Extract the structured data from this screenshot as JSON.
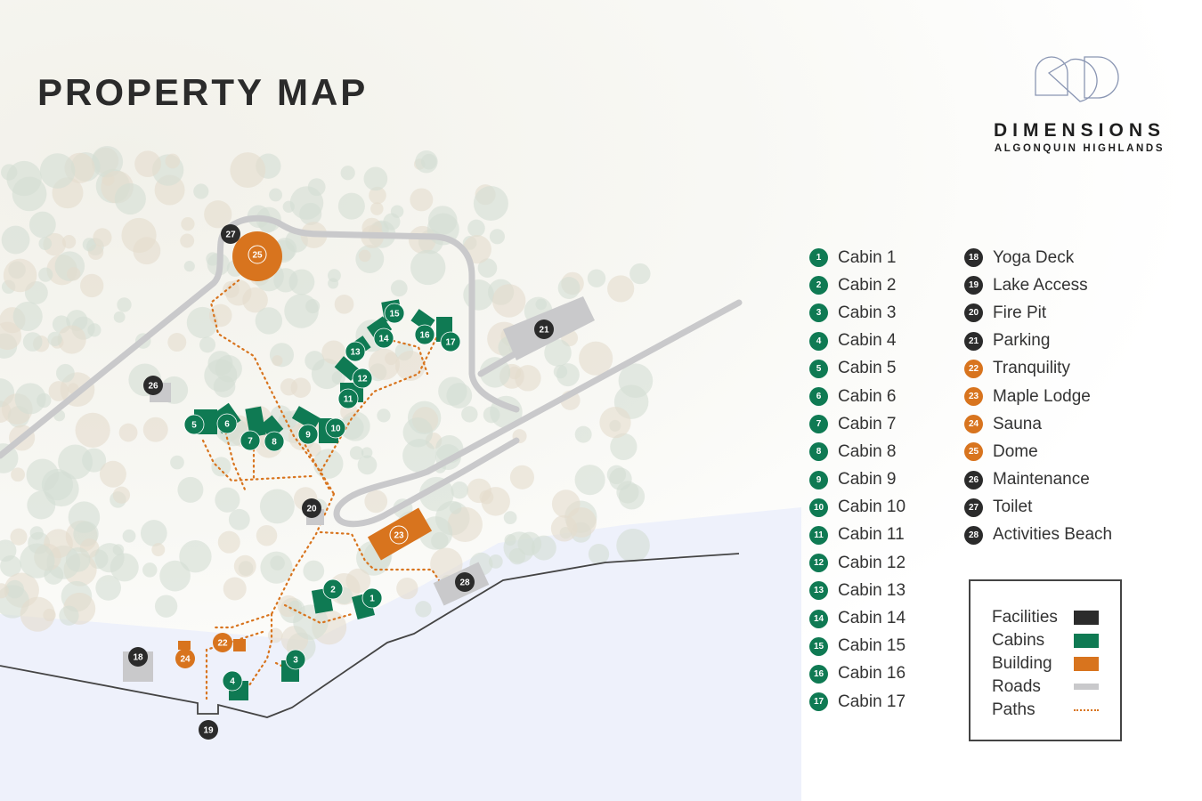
{
  "title": "PROPERTY MAP",
  "brand": {
    "name": "DIMENSIONS",
    "subtitle": "ALGONQUIN HIGHLANDS"
  },
  "colors": {
    "facility": "#2b2b2b",
    "cabin": "#0f7a53",
    "building": "#d8741e",
    "road": "#c9c9cb",
    "path": "#d8741e",
    "water": "#eef1fb"
  },
  "legend_items": [
    {
      "num": "1",
      "label": "Cabin 1",
      "type": "cabin"
    },
    {
      "num": "2",
      "label": "Cabin 2",
      "type": "cabin"
    },
    {
      "num": "3",
      "label": "Cabin 3",
      "type": "cabin"
    },
    {
      "num": "4",
      "label": "Cabin 4",
      "type": "cabin"
    },
    {
      "num": "5",
      "label": "Cabin 5",
      "type": "cabin"
    },
    {
      "num": "6",
      "label": "Cabin 6",
      "type": "cabin"
    },
    {
      "num": "7",
      "label": "Cabin 7",
      "type": "cabin"
    },
    {
      "num": "8",
      "label": "Cabin 8",
      "type": "cabin"
    },
    {
      "num": "9",
      "label": "Cabin 9",
      "type": "cabin"
    },
    {
      "num": "10",
      "label": "Cabin 10",
      "type": "cabin"
    },
    {
      "num": "11",
      "label": "Cabin 11",
      "type": "cabin"
    },
    {
      "num": "12",
      "label": "Cabin 12",
      "type": "cabin"
    },
    {
      "num": "13",
      "label": "Cabin 13",
      "type": "cabin"
    },
    {
      "num": "14",
      "label": "Cabin 14",
      "type": "cabin"
    },
    {
      "num": "15",
      "label": "Cabin 15",
      "type": "cabin"
    },
    {
      "num": "16",
      "label": "Cabin 16",
      "type": "cabin"
    },
    {
      "num": "17",
      "label": "Cabin 17",
      "type": "cabin"
    },
    {
      "num": "18",
      "label": "Yoga Deck",
      "type": "facility"
    },
    {
      "num": "19",
      "label": "Lake Access",
      "type": "facility"
    },
    {
      "num": "20",
      "label": "Fire Pit",
      "type": "facility"
    },
    {
      "num": "21",
      "label": "Parking",
      "type": "facility"
    },
    {
      "num": "22",
      "label": "Tranquility",
      "type": "building"
    },
    {
      "num": "23",
      "label": "Maple Lodge",
      "type": "building"
    },
    {
      "num": "24",
      "label": "Sauna",
      "type": "building"
    },
    {
      "num": "25",
      "label": "Dome",
      "type": "building"
    },
    {
      "num": "26",
      "label": "Maintenance",
      "type": "facility"
    },
    {
      "num": "27",
      "label": "Toilet",
      "type": "facility"
    },
    {
      "num": "28",
      "label": "Activities Beach",
      "type": "facility"
    }
  ],
  "key": [
    {
      "label": "Facilities",
      "type": "facility"
    },
    {
      "label": "Cabins",
      "type": "cabin"
    },
    {
      "label": "Building",
      "type": "building"
    },
    {
      "label": "Roads",
      "type": "road"
    },
    {
      "label": "Paths",
      "type": "path"
    }
  ]
}
